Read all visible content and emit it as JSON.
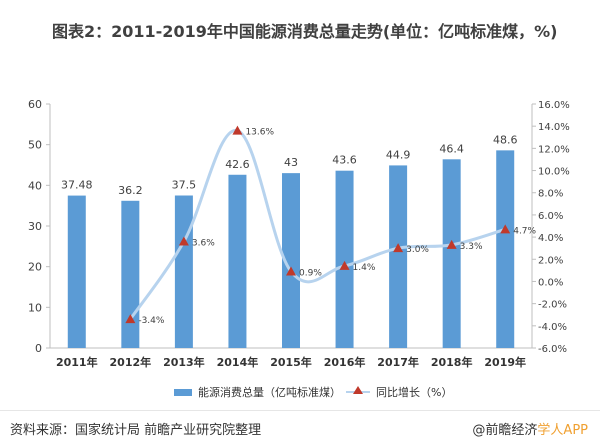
{
  "title": "图表2：2011-2019年中国能源消费总量走势(单位：亿吨标准煤，%)",
  "source": "资料来源：国家统计局 前瞻产业研究院整理",
  "brand": {
    "prefix": "@前瞻经济",
    "suffix": "学人APP"
  },
  "colors": {
    "bar": "#5b9bd5",
    "line": "#b7d3ee",
    "marker": "#c0392b"
  },
  "chart_data": {
    "type": "bar",
    "categories": [
      "2011年",
      "2012年",
      "2013年",
      "2014年",
      "2015年",
      "2016年",
      "2017年",
      "2018年",
      "2019年"
    ],
    "series": [
      {
        "name": "能源消费总量（亿吨标准煤）",
        "type": "bar",
        "axis": "left",
        "values": [
          37.48,
          36.2,
          37.5,
          42.6,
          43,
          43.6,
          44.9,
          46.4,
          48.6
        ],
        "labels": [
          "37.48",
          "36.2",
          "37.5",
          "42.6",
          "43",
          "43.6",
          "44.9",
          "46.4",
          "48.6"
        ]
      },
      {
        "name": "同比增长（%）",
        "type": "line",
        "axis": "right",
        "values": [
          null,
          -3.4,
          3.6,
          13.6,
          0.9,
          1.4,
          3.0,
          3.3,
          4.7
        ],
        "labels": [
          "",
          "-3.4%",
          "3.6%",
          "13.6%",
          "0.9%",
          "1.4%",
          "3.0%",
          "3.3%",
          "4.7%"
        ]
      }
    ],
    "y_left": {
      "range": [
        0,
        60
      ],
      "ticks": [
        "0",
        "10",
        "20",
        "30",
        "40",
        "50",
        "60"
      ]
    },
    "y_right": {
      "range": [
        -6,
        16
      ],
      "ticks": [
        "-6.0%",
        "-4.0%",
        "-2.0%",
        "0.0%",
        "2.0%",
        "4.0%",
        "6.0%",
        "8.0%",
        "10.0%",
        "12.0%",
        "14.0%",
        "16.0%"
      ]
    },
    "grid": false,
    "legend": "bottom"
  }
}
